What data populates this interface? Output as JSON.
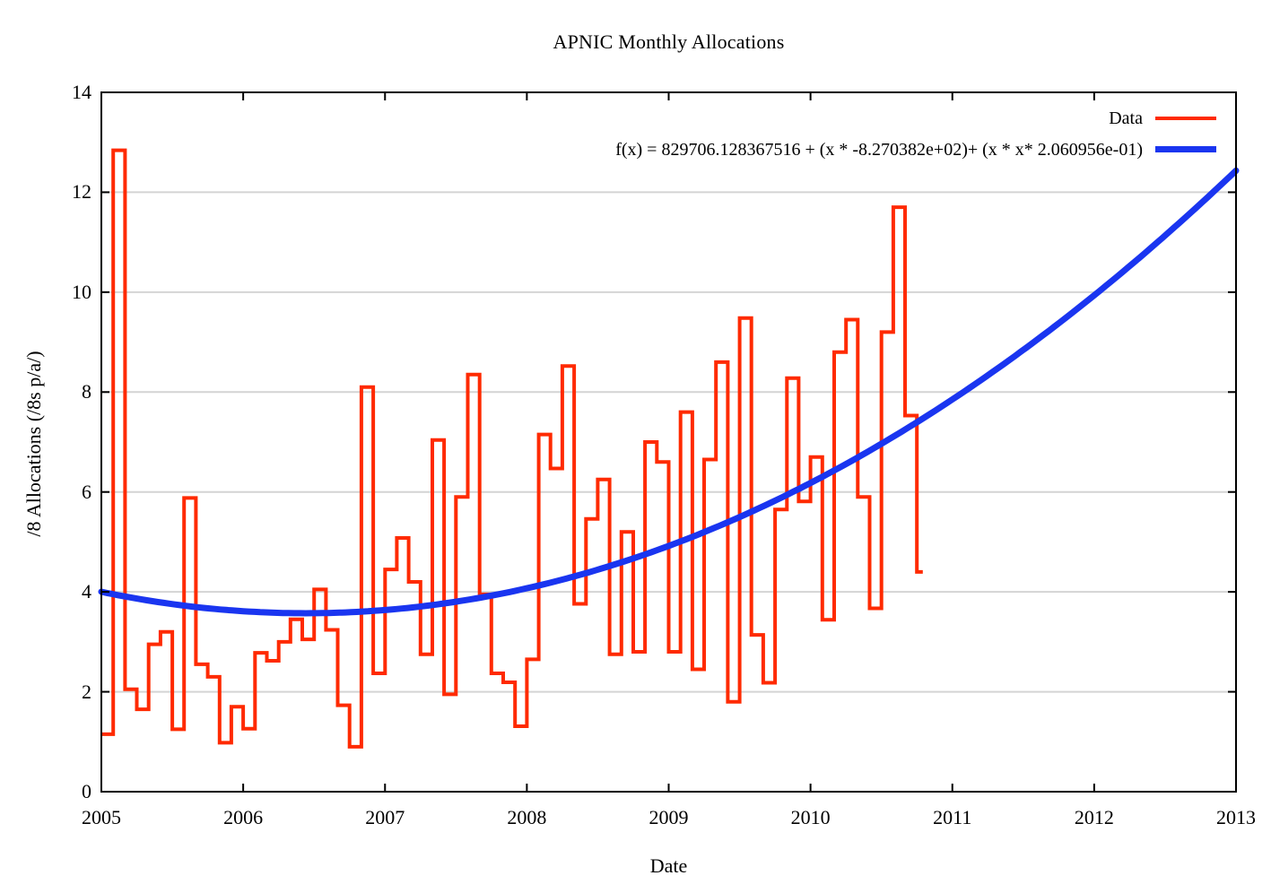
{
  "chart_data": {
    "type": "line",
    "title": "APNIC Monthly Allocations",
    "xlabel": "Date",
    "ylabel": "/8 Allocations (/8s p/a/)",
    "xlim": [
      2005,
      2013
    ],
    "ylim": [
      0,
      14
    ],
    "x_ticks": [
      2005,
      2006,
      2007,
      2008,
      2009,
      2010,
      2011,
      2012,
      2013
    ],
    "y_ticks": [
      0,
      2,
      4,
      6,
      8,
      10,
      12,
      14
    ],
    "grid": "horizontal-only",
    "legend_position": "top-right-inside",
    "colors": {
      "data": "#ff2a00",
      "fit": "#1a35f0",
      "grid": "#d4d4d4",
      "frame": "#000000"
    },
    "series": [
      {
        "name": "Data",
        "style": "histeps",
        "color": "#ff2a00",
        "start_year": 2005,
        "start_month": 1,
        "monthly_values": [
          1.15,
          12.84,
          2.05,
          1.65,
          2.95,
          3.2,
          1.25,
          5.88,
          2.55,
          2.3,
          0.98,
          1.7,
          1.26,
          2.78,
          2.62,
          3.0,
          3.45,
          3.05,
          4.05,
          3.24,
          1.73,
          0.9,
          8.1,
          2.37,
          4.45,
          5.08,
          4.2,
          2.75,
          7.04,
          1.95,
          5.9,
          8.35,
          3.95,
          2.37,
          2.19,
          1.31,
          2.65,
          7.15,
          6.47,
          8.52,
          3.76,
          5.46,
          6.25,
          2.75,
          5.2,
          2.8,
          7.0,
          6.6,
          2.8,
          7.6,
          2.45,
          6.65,
          8.6,
          1.8,
          9.48,
          3.14,
          2.18,
          5.65,
          8.28,
          5.81,
          6.7,
          3.44,
          8.8,
          9.45,
          5.9,
          3.67,
          9.2,
          11.7,
          7.53,
          4.4
        ]
      },
      {
        "name": "f(x) = 829706.128367516 + (x * -8.270382e+02)+ (x * x* 2.060956e-01)",
        "style": "quadratic-fit-curve",
        "color": "#1a35f0",
        "coefficients": {
          "a": 829706.128367516,
          "b": -827.0382,
          "c": 0.2060956
        }
      }
    ]
  }
}
